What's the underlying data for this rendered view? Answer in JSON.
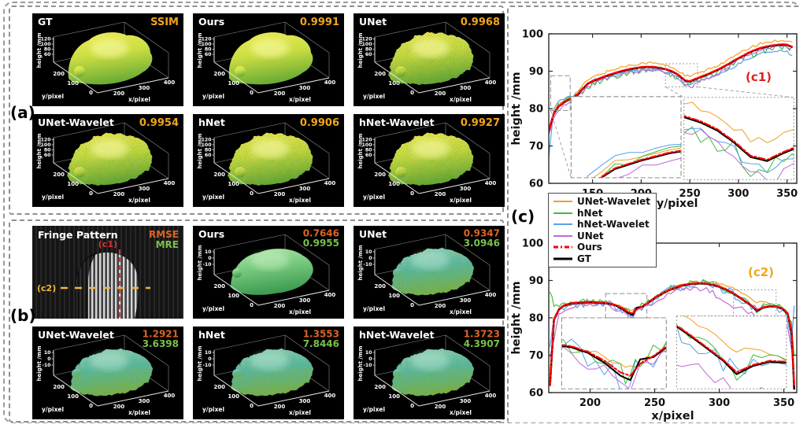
{
  "panels": {
    "a": {
      "label": "(a)"
    },
    "b": {
      "label": "(b)"
    },
    "c": {
      "label": "(c)"
    }
  },
  "colors": {
    "ssim": "#F2A51A",
    "rmse": "#DD6420",
    "mre": "#79C24A",
    "orange": "#F59E24",
    "green": "#3FBE3F",
    "blue": "#57A3E8",
    "magenta": "#C26BD6",
    "red": "#FF0000",
    "black": "#000000",
    "corner_c1": "#E02020",
    "corner_c2": "#F2A51A",
    "fringe_red_line": "#E03030",
    "fringe_yellow_line": "#F2B63C"
  },
  "surface_axes_a": {
    "z_label": "height /mm",
    "y_label": "y/pixel",
    "x_label": "x/pixel",
    "z_ticks": [
      "120",
      "100",
      "80",
      "60"
    ],
    "y_ticks": [
      "200",
      "100",
      "0"
    ],
    "x_ticks": [
      "200",
      "300",
      "400"
    ]
  },
  "surface_axes_b": {
    "z_label": "height /mm",
    "y_label": "y/pixel",
    "x_label": "x/pixel",
    "z_ticks": [
      "10",
      "0",
      "-10"
    ],
    "y_ticks": [
      "200",
      "100",
      "0"
    ],
    "x_ticks": [
      "200",
      "300",
      "400"
    ]
  },
  "panel_a_subplots": [
    {
      "title": "GT",
      "metric": "SSIM",
      "variant": "smooth"
    },
    {
      "title": "Ours",
      "metric": "0.9991",
      "variant": "smooth"
    },
    {
      "title": "UNet",
      "metric": "0.9968",
      "variant": "rough"
    },
    {
      "title": "UNet-Wavelet",
      "metric": "0.9954",
      "variant": "rough"
    },
    {
      "title": "hNet",
      "metric": "0.9906",
      "variant": "rough"
    },
    {
      "title": "hNet-Wavelet",
      "metric": "0.9927",
      "variant": "rough"
    }
  ],
  "fringe": {
    "title": "Fringe Pattern",
    "rmse_label": "RMSE",
    "mre_label": "MRE",
    "c1_label": "(c1)",
    "c2_label": "(c2)"
  },
  "panel_b_subplots": [
    {
      "title": "Ours",
      "rmse": "0.7646",
      "mre": "0.9955",
      "variant": "green"
    },
    {
      "title": "UNet",
      "rmse": "0.9347",
      "mre": "3.0946",
      "variant": "teal"
    },
    {
      "title": "UNet-Wavelet",
      "rmse": "1.2921",
      "mre": "3.6398",
      "variant": "teal"
    },
    {
      "title": "hNet",
      "rmse": "1.3553",
      "mre": "7.8446",
      "variant": "teal"
    },
    {
      "title": "hNet-Wavelet",
      "rmse": "1.3723",
      "mre": "4.3907",
      "variant": "teal"
    }
  ],
  "legend": {
    "entries": [
      {
        "label": "UNet-Wavelet",
        "color": "#F59E24",
        "dash": "",
        "width": 2
      },
      {
        "label": "hNet",
        "color": "#3FBE3F",
        "dash": "",
        "width": 2
      },
      {
        "label": "hNet-Wavelet",
        "color": "#57A3E8",
        "dash": "",
        "width": 2
      },
      {
        "label": "UNet",
        "color": "#C26BD6",
        "dash": "",
        "width": 2
      },
      {
        "label": "Ours",
        "color": "#FF0000",
        "dash": "6 3 2 3",
        "width": 3
      },
      {
        "label": "GT",
        "color": "#000000",
        "dash": "",
        "width": 3
      }
    ]
  },
  "chart_data": [
    {
      "id": "c1",
      "type": "line",
      "corner_label": "(c1)",
      "corner_color": "#E02020",
      "xlabel": "y/pixel",
      "ylabel": "height /mm",
      "xlim": [
        105,
        360
      ],
      "ylim": [
        60,
        100
      ],
      "xticks": [
        150,
        200,
        250,
        300,
        350
      ],
      "yticks": [
        60,
        70,
        80,
        90,
        100
      ],
      "x_start": 105,
      "x_step": 5,
      "series": [
        {
          "name": "UNet-Wavelet",
          "color": "#F59E24",
          "width": 1.2,
          "noise": 0.35,
          "values": [
            74.1,
            78.8,
            81.2,
            81.9,
            82.9,
            83.4,
            84.7,
            86.2,
            87.6,
            88.3,
            88.9,
            89.4,
            89.9,
            90.3,
            90.7,
            91.1,
            91.4,
            91.7,
            91.9,
            92.1,
            92.2,
            92.2,
            92.1,
            91.9,
            91.6,
            91.2,
            90.6,
            89.8,
            88.8,
            88.6,
            89.1,
            89.6,
            90,
            90.5,
            91.1,
            91.7,
            92.4,
            93.1,
            93.9,
            94.6,
            95.3,
            96,
            96.6,
            97.1,
            97.5,
            97.8,
            98,
            98.2,
            98.3,
            98.2,
            97.6
          ]
        },
        {
          "name": "hNet",
          "color": "#3FBE3F",
          "width": 1.2,
          "noise": 0.9,
          "values": [
            73.8,
            78,
            80.6,
            81.1,
            82.4,
            82.3,
            83.5,
            84.7,
            86,
            86.5,
            87.1,
            87.6,
            88.1,
            88.5,
            88.9,
            89.3,
            89.6,
            89.9,
            90.1,
            90.3,
            90.4,
            90.4,
            90.3,
            90.1,
            89.8,
            89.4,
            88.8,
            87.9,
            86.8,
            86.5,
            87.1,
            87.6,
            88.1,
            88.6,
            89.2,
            89.8,
            90.5,
            91.2,
            92,
            92.7,
            93.4,
            94.1,
            94.7,
            95.2,
            95.6,
            95.9,
            96.1,
            96.3,
            96.4,
            96.3,
            95.8
          ]
        },
        {
          "name": "hNet-Wavelet",
          "color": "#57A3E8",
          "width": 1.2,
          "noise": 0.35,
          "values": [
            67,
            79.5,
            82,
            82.3,
            83.2,
            83.1,
            84.1,
            85.5,
            86.8,
            87.4,
            87.9,
            88.2,
            88.6,
            88.9,
            89.2,
            89.6,
            89.9,
            90.1,
            90.3,
            90.4,
            90.5,
            90.5,
            90.4,
            90.2,
            89.9,
            89.5,
            88.9,
            88,
            86.9,
            86.6,
            87.1,
            87.5,
            87.9,
            88.3,
            88.8,
            89.3,
            89.9,
            90.5,
            91.2,
            91.9,
            92.6,
            93.3,
            93.9,
            94.4,
            94.8,
            95.1,
            95.3,
            95.5,
            95.6,
            95.5,
            93.8
          ]
        },
        {
          "name": "UNet",
          "color": "#C26BD6",
          "width": 1.2,
          "noise": 0.5,
          "values": [
            73,
            77.2,
            79.8,
            80.8,
            81.5,
            81.9,
            83,
            84.5,
            85.8,
            86.5,
            87,
            87.5,
            88,
            88.4,
            88.8,
            89.2,
            89.5,
            89.8,
            90,
            90.2,
            90.3,
            90.3,
            90.2,
            90,
            89.7,
            89.2,
            88.5,
            87.5,
            86.2,
            85.7,
            86.4,
            87.1,
            87.7,
            88.3,
            89,
            89.7,
            90.5,
            91.3,
            92.2,
            93,
            93.7,
            94.3,
            94.9,
            95.4,
            95.8,
            96.1,
            96.3,
            96.5,
            96.6,
            96.5,
            96
          ]
        },
        {
          "name": "GT",
          "color": "#000000",
          "width": 2.4,
          "noise": 0,
          "values": [
            74,
            78.5,
            80.5,
            81.5,
            82.3,
            82.8,
            83.8,
            85.3,
            86.6,
            87.3,
            87.8,
            88.3,
            88.8,
            89.2,
            89.6,
            90,
            90.3,
            90.6,
            90.8,
            91,
            91.1,
            91.1,
            91,
            90.8,
            90.5,
            90.1,
            89.5,
            88.6,
            87.5,
            87.2,
            87.8,
            88.3,
            88.8,
            89.3,
            89.9,
            90.5,
            91.2,
            91.9,
            92.7,
            93.4,
            94.1,
            94.8,
            95.4,
            95.9,
            96.3,
            96.6,
            96.8,
            97,
            97.1,
            97,
            96.5
          ]
        },
        {
          "name": "Ours",
          "color": "#FF0000",
          "width": 2.4,
          "dash": "8 3 2.5 3",
          "noise": 0,
          "values": [
            74.1,
            78.6,
            80.6,
            81.6,
            82.4,
            82.9,
            83.9,
            85.4,
            86.7,
            87.4,
            87.9,
            88.4,
            88.9,
            89.3,
            89.7,
            90.1,
            90.4,
            90.7,
            90.9,
            91.1,
            91.2,
            91.2,
            91.1,
            90.9,
            90.6,
            90.2,
            89.6,
            88.7,
            87.6,
            87.3,
            87.9,
            88.4,
            88.9,
            89.4,
            90,
            90.6,
            91.3,
            92,
            92.8,
            93.5,
            94.2,
            94.9,
            95.5,
            96,
            96.4,
            96.7,
            96.9,
            97.1,
            97.2,
            97.1,
            96.6
          ]
        }
      ],
      "insets": [
        {
          "style": "dashed",
          "src": {
            "x": [
              107,
              127
            ],
            "y": [
              79.5,
              88.8
            ]
          },
          "dst": {
            "x": [
              128,
              241
            ],
            "y": [
              61.5,
              83.2
            ]
          },
          "connectors": [
            [
              [
                107,
                79.5
              ],
              [
                128,
                61.5
              ]
            ],
            [
              [
                127,
                79.5
              ],
              [
                128,
                83.2
              ]
            ]
          ]
        },
        {
          "style": "dotted",
          "src": {
            "x": [
              225,
              258
            ],
            "y": [
              85.8,
              92
            ]
          },
          "dst": {
            "x": [
              244,
              357
            ],
            "y": [
              61,
              83
            ]
          },
          "connectors": [
            [
              [
                225,
                85.8
              ],
              [
                244,
                83
              ]
            ],
            [
              [
                258,
                85.8
              ],
              [
                357,
                83
              ]
            ]
          ]
        }
      ]
    },
    {
      "id": "c2",
      "type": "line",
      "corner_label": "(c2)",
      "corner_color": "#F2A51A",
      "xlabel": "x/pixel",
      "ylabel": "height /mm",
      "xlim": [
        168,
        360
      ],
      "ylim": [
        60,
        100
      ],
      "xticks": [
        200,
        250,
        300,
        350
      ],
      "yticks": [
        60,
        70,
        80,
        90,
        100
      ],
      "x": [
        169,
        172,
        176,
        180,
        185,
        190,
        195,
        200,
        205,
        210,
        215,
        220,
        225,
        230,
        233,
        236,
        240,
        245,
        250,
        255,
        260,
        265,
        270,
        275,
        280,
        285,
        290,
        295,
        300,
        305,
        310,
        315,
        320,
        325,
        329,
        334,
        339,
        344,
        349,
        353,
        356,
        358
      ],
      "series": [
        {
          "name": "UNet-Wavelet",
          "color": "#F59E24",
          "width": 1.2,
          "noise": 0.3,
          "values": [
            66,
            79,
            82,
            83,
            83.5,
            83.6,
            83.8,
            83.9,
            83.9,
            83.8,
            83.7,
            83.4,
            82.9,
            82.2,
            82,
            82.5,
            83.1,
            84.3,
            85.5,
            86.6,
            87.5,
            88.2,
            88.8,
            89.2,
            89.5,
            89.6,
            89.6,
            89.5,
            89.2,
            88.7,
            88,
            87.1,
            86.1,
            85,
            84.2,
            84.4,
            84.1,
            83.4,
            82.6,
            81.2,
            76.5,
            70
          ]
        },
        {
          "name": "hNet",
          "color": "#3FBE3F",
          "width": 1.2,
          "noise": 0.9,
          "values": [
            87.5,
            83,
            82.8,
            83.6,
            84.1,
            84.3,
            84.4,
            84.5,
            84.4,
            84.3,
            84.1,
            83.6,
            82.7,
            81.5,
            81.1,
            82.9,
            83.2,
            84.3,
            85.6,
            86.6,
            87.5,
            88.2,
            88.8,
            89.2,
            89.4,
            89.5,
            89.4,
            89.1,
            88.6,
            87.9,
            87,
            85.9,
            84.7,
            83.5,
            82.2,
            83,
            83.4,
            83.3,
            82.7,
            81.5,
            79,
            70
          ]
        },
        {
          "name": "hNet-Wavelet",
          "color": "#57A3E8",
          "width": 1.2,
          "noise": 1.2,
          "values": [
            73,
            80,
            82.1,
            83.1,
            83.6,
            83.8,
            83.9,
            84,
            83.9,
            83.8,
            83.6,
            83.1,
            82.1,
            80.9,
            80.5,
            82.4,
            82.6,
            83.7,
            85,
            86,
            86.9,
            87.6,
            88.2,
            88.6,
            88.8,
            88.9,
            88.8,
            88.5,
            88,
            87.3,
            86.4,
            85.3,
            84.1,
            82.9,
            81.6,
            82.4,
            82.8,
            82.7,
            82.1,
            79,
            74,
            83
          ]
        },
        {
          "name": "UNet",
          "color": "#C26BD6",
          "width": 1.2,
          "noise": 0.7,
          "values": [
            70,
            74,
            80.5,
            82.3,
            83.2,
            83.4,
            83.5,
            83.6,
            83.5,
            83.4,
            83.1,
            82.5,
            81.5,
            80.3,
            80,
            81.8,
            82.1,
            83.2,
            84.5,
            85.5,
            86.4,
            87.1,
            87.6,
            87.9,
            88,
            87.9,
            87.5,
            86.7,
            85.4,
            84.3,
            83.4,
            82.7,
            82,
            81,
            80.2,
            80,
            80.4,
            80.2,
            79.6,
            77.5,
            71,
            65
          ]
        },
        {
          "name": "GT",
          "color": "#000000",
          "width": 2.4,
          "noise": 0,
          "values": [
            62,
            79.5,
            82.3,
            83.3,
            83.8,
            84,
            84.1,
            84.2,
            84.1,
            84,
            83.8,
            83.3,
            82.4,
            81.2,
            80.8,
            82.7,
            82.9,
            84,
            85.3,
            86.3,
            87.2,
            87.9,
            88.5,
            88.9,
            89.1,
            89.2,
            89.1,
            88.8,
            88.3,
            87.6,
            86.7,
            85.6,
            84.4,
            83.2,
            81.9,
            82.7,
            83.1,
            83,
            82.4,
            81,
            76,
            61
          ]
        },
        {
          "name": "Ours",
          "color": "#FF0000",
          "width": 2.4,
          "dash": "8 3 2.5 3",
          "noise": 0,
          "values": [
            62,
            79.6,
            82.4,
            83.4,
            83.9,
            84.1,
            84.2,
            84.3,
            84.2,
            84.1,
            83.9,
            83.4,
            82.6,
            81.5,
            81.2,
            82.3,
            83,
            84.1,
            85.4,
            86.4,
            87.3,
            88,
            88.6,
            89,
            89.2,
            89.3,
            89.2,
            88.9,
            88.4,
            87.7,
            86.8,
            85.7,
            84.5,
            83.3,
            82.1,
            82.8,
            83.2,
            83.1,
            82.5,
            81.2,
            76.5,
            62
          ]
        }
      ],
      "insets": [
        {
          "style": "dashed",
          "src": {
            "x": [
              212,
              244
            ],
            "y": [
              80,
              86.5
            ]
          },
          "dst": {
            "x": [
              178,
              259
            ],
            "y": [
              61,
              80
            ]
          },
          "connectors": [
            [
              [
                212,
                80
              ],
              [
                178,
                80
              ]
            ],
            [
              [
                244,
                80
              ],
              [
                259,
                80
              ]
            ]
          ]
        },
        {
          "style": "dotted",
          "src": {
            "x": [
              311,
              344
            ],
            "y": [
              80.5,
              87.5
            ]
          },
          "dst": {
            "x": [
              267,
              352
            ],
            "y": [
              61,
              80.5
            ]
          },
          "connectors": [
            [
              [
                311,
                80.5
              ],
              [
                267,
                80.5
              ]
            ],
            [
              [
                344,
                80.5
              ],
              [
                352,
                80.5
              ]
            ]
          ]
        }
      ]
    }
  ]
}
